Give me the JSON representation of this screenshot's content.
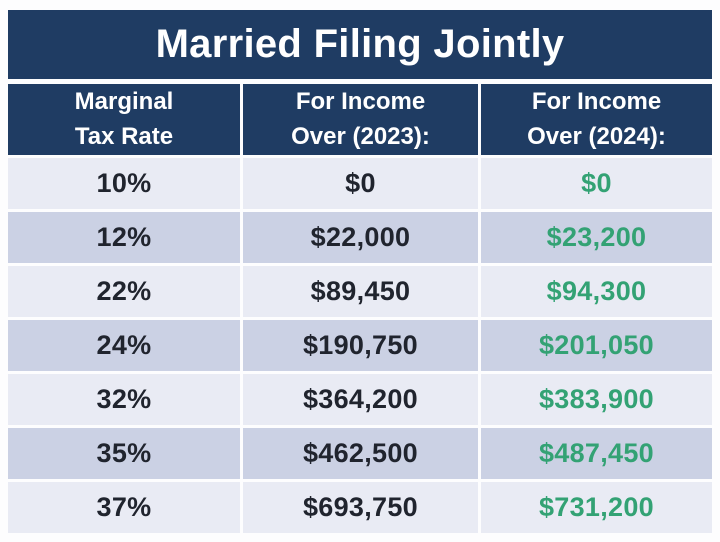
{
  "title": "Married Filing Jointly",
  "colors": {
    "page_bg": "#fdfdfe",
    "navy": "#1f3c63",
    "row_light": "#e9ebf4",
    "row_dark": "#cbd1e4",
    "green": "#33a274",
    "text_dark": "#20242e"
  },
  "chart_data": {
    "type": "table",
    "title": "Married Filing Jointly",
    "columns": [
      "Marginal\nTax Rate",
      "For Income\nOver (2023):",
      "For Income\nOver (2024):"
    ],
    "rows": [
      {
        "rate": "10%",
        "income_2023": "$0",
        "income_2024": "$0"
      },
      {
        "rate": "12%",
        "income_2023": "$22,000",
        "income_2024": "$23,200"
      },
      {
        "rate": "22%",
        "income_2023": "$89,450",
        "income_2024": "$94,300"
      },
      {
        "rate": "24%",
        "income_2023": "$190,750",
        "income_2024": "$201,050"
      },
      {
        "rate": "32%",
        "income_2023": "$364,200",
        "income_2024": "$383,900"
      },
      {
        "rate": "35%",
        "income_2023": "$462,500",
        "income_2024": "$487,450"
      },
      {
        "rate": "37%",
        "income_2023": "$693,750",
        "income_2024": "$731,200"
      }
    ],
    "layout_hints": {
      "value_color_2024": "green",
      "row_striping": "alternating light/dark lavender",
      "header_style": "navy background, white bold text"
    }
  }
}
